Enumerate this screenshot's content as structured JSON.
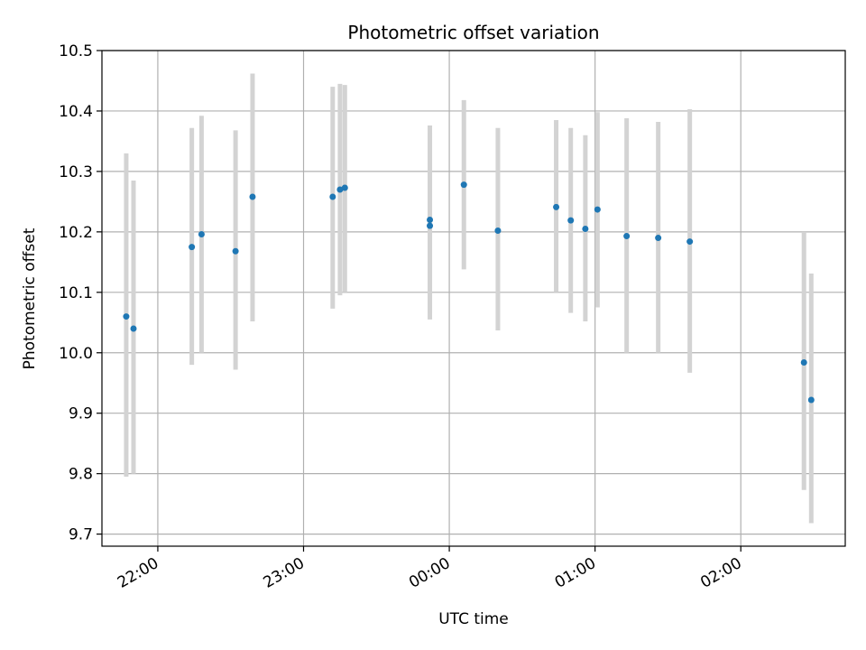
{
  "chart_data": {
    "type": "scatter",
    "title": "Photometric offset variation",
    "xlabel": "UTC time",
    "ylabel": "Photometric offset",
    "xticks": [
      "22:00",
      "23:00",
      "00:00",
      "01:00",
      "02:00"
    ],
    "xtick_minutes": [
      0,
      60,
      120,
      180,
      240
    ],
    "yticks": [
      "9.7",
      "9.8",
      "9.9",
      "10.0",
      "10.1",
      "10.2",
      "10.3",
      "10.4",
      "10.5"
    ],
    "ylim": [
      9.68,
      10.5
    ],
    "xlim_minutes": [
      -23,
      283
    ],
    "grid": true,
    "marker_color": "#1f77b4",
    "errorbar_color": "#d3d3d3",
    "points": [
      {
        "t": "21:47",
        "y": 10.06,
        "low": 9.795,
        "high": 10.33
      },
      {
        "t": "21:50",
        "y": 10.04,
        "low": 9.8,
        "high": 10.285
      },
      {
        "t": "22:14",
        "y": 10.175,
        "low": 9.98,
        "high": 10.372
      },
      {
        "t": "22:18",
        "y": 10.196,
        "low": 10.0,
        "high": 10.392
      },
      {
        "t": "22:32",
        "y": 10.168,
        "low": 9.972,
        "high": 10.368
      },
      {
        "t": "22:39",
        "y": 10.258,
        "low": 10.052,
        "high": 10.462
      },
      {
        "t": "23:12",
        "y": 10.258,
        "low": 10.073,
        "high": 10.44
      },
      {
        "t": "23:15",
        "y": 10.27,
        "low": 10.095,
        "high": 10.445
      },
      {
        "t": "23:17",
        "y": 10.273,
        "low": 10.1,
        "high": 10.443
      },
      {
        "t": "23:52",
        "y": 10.21,
        "low": 10.055,
        "high": 10.365
      },
      {
        "t": "23:52",
        "y": 10.22,
        "low": 10.065,
        "high": 10.376
      },
      {
        "t": "00:06",
        "y": 10.278,
        "low": 10.138,
        "high": 10.418
      },
      {
        "t": "00:20",
        "y": 10.202,
        "low": 10.037,
        "high": 10.372
      },
      {
        "t": "00:44",
        "y": 10.241,
        "low": 10.1,
        "high": 10.385
      },
      {
        "t": "00:50",
        "y": 10.219,
        "low": 10.066,
        "high": 10.372
      },
      {
        "t": "00:56",
        "y": 10.205,
        "low": 10.052,
        "high": 10.36
      },
      {
        "t": "01:01",
        "y": 10.237,
        "low": 10.075,
        "high": 10.398
      },
      {
        "t": "01:13",
        "y": 10.193,
        "low": 10.0,
        "high": 10.388
      },
      {
        "t": "01:26",
        "y": 10.19,
        "low": 10.0,
        "high": 10.382
      },
      {
        "t": "01:39",
        "y": 10.184,
        "low": 9.967,
        "high": 10.403
      },
      {
        "t": "02:26",
        "y": 9.984,
        "low": 9.773,
        "high": 10.2
      },
      {
        "t": "02:29",
        "y": 9.922,
        "low": 9.718,
        "high": 10.131
      }
    ]
  }
}
